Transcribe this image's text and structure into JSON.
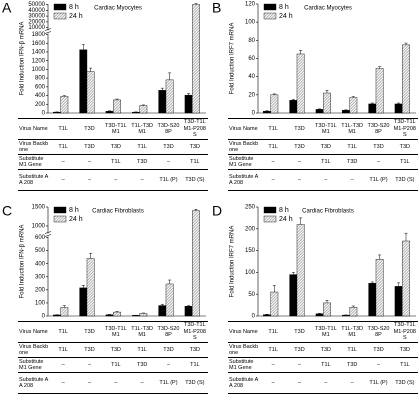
{
  "chart_data": [
    {
      "type": "bar",
      "panel": "A",
      "title": "Cardiac Myocytes",
      "y_label": "Fold Induction IFN-β mRNA",
      "categories": [
        "T1L",
        "T3D",
        "T3D-T1LM1",
        "T1L-T3DM1",
        "T3D-S208P",
        "T3D-T1LM1-P208S"
      ],
      "series": [
        {
          "name": "8 h",
          "color": "#000000",
          "values": [
            20,
            1450,
            40,
            20,
            520,
            410
          ],
          "errors": [
            5,
            120,
            10,
            5,
            50,
            40
          ]
        },
        {
          "name": "24 h",
          "color": "#b0b0b0",
          "pattern": "hatch",
          "values": [
            380,
            950,
            300,
            170,
            760,
            50000
          ],
          "errors": [
            20,
            80,
            20,
            15,
            160,
            1500
          ]
        }
      ],
      "ylim": [
        0,
        1800
      ],
      "yticks": [
        0,
        200,
        400,
        600,
        800,
        1000,
        1200,
        1400,
        1600,
        1800
      ],
      "y_break": {
        "ylim": [
          5000,
          51000
        ],
        "yticks": [
          10000,
          20000,
          30000,
          40000,
          50000
        ]
      },
      "table": {
        "headers": [
          "Virus Name",
          "Virus Backbone",
          "Substitute M1 Gene",
          "Substitute AA 208"
        ],
        "rows": [
          [
            "T1L",
            "T3D",
            "T3D",
            "T1L",
            "T3D",
            "T3D"
          ],
          [
            "–",
            "–",
            "T1L",
            "T3D",
            "–",
            "T1L"
          ],
          [
            "–",
            "–",
            "–",
            "–",
            "T1L (P)",
            "T3D (S)"
          ]
        ]
      }
    },
    {
      "type": "bar",
      "panel": "B",
      "title": "Cardiac Myocytes",
      "y_label": "Fold Induction IRF7 mRNA",
      "categories": [
        "T1L",
        "T3D",
        "T3D-T1LM1",
        "T1L-T3DM1",
        "T3D-S208P",
        "T3D-T1LM1-P208S"
      ],
      "series": [
        {
          "name": "8 h",
          "color": "#000000",
          "values": [
            2,
            14,
            4,
            3,
            10,
            10
          ],
          "errors": [
            0.5,
            1,
            0.5,
            0.5,
            1,
            1
          ]
        },
        {
          "name": "24 h",
          "color": "#b0b0b0",
          "pattern": "hatch",
          "values": [
            20,
            65,
            22,
            17,
            49,
            75
          ],
          "errors": [
            1,
            4,
            3,
            1,
            2,
            2
          ]
        }
      ],
      "ylim": [
        0,
        120
      ],
      "yticks": [
        0,
        20,
        40,
        60,
        80,
        100,
        120
      ],
      "table": {
        "headers": [
          "Virus Name",
          "Virus Backbone",
          "Substitute M1 Gene",
          "Substitute AA 208"
        ],
        "rows": [
          [
            "T1L",
            "T3D",
            "T3D",
            "T1L",
            "T3D",
            "T3D"
          ],
          [
            "–",
            "–",
            "T1L",
            "T3D",
            "–",
            "T1L"
          ],
          [
            "–",
            "–",
            "–",
            "–",
            "T1L (P)",
            "T3D (S)"
          ]
        ]
      }
    },
    {
      "type": "bar",
      "panel": "C",
      "title": "Cardiac Fibroblasts",
      "y_label": "Fold Induction IFN-β mRNA",
      "categories": [
        "T1L",
        "T3D",
        "T3D-T1LM1",
        "T1L-T3DM1",
        "T3D-S208P",
        "T3D-T1LM1-P208S"
      ],
      "series": [
        {
          "name": "8 h",
          "color": "#000000",
          "values": [
            8,
            215,
            10,
            5,
            80,
            75
          ],
          "errors": [
            2,
            20,
            2,
            1,
            10,
            5
          ]
        },
        {
          "name": "24 h",
          "color": "#b0b0b0",
          "pattern": "hatch",
          "values": [
            65,
            440,
            30,
            20,
            245,
            1400
          ],
          "errors": [
            15,
            40,
            5,
            3,
            30,
            40
          ]
        }
      ],
      "ylim": [
        0,
        600
      ],
      "yticks": [
        0,
        100,
        200,
        300,
        400,
        500,
        600
      ],
      "y_break": {
        "ylim": [
          800,
          1500
        ],
        "yticks": [
          1000,
          1500
        ]
      },
      "table": {
        "headers": [
          "Virus Name",
          "Virus Backbone",
          "Substitute M1 Gene",
          "Substitute AA 208"
        ],
        "rows": [
          [
            "T1L",
            "T3D",
            "T3D",
            "T1L",
            "T3D",
            "T3D"
          ],
          [
            "–",
            "–",
            "T1L",
            "T3D",
            "–",
            "T1L"
          ],
          [
            "–",
            "–",
            "–",
            "–",
            "T1L (P)",
            "T3D (S)"
          ]
        ]
      }
    },
    {
      "type": "bar",
      "panel": "D",
      "title": "Cardiac Fibroblasts",
      "y_label": "Fold Induction IRF7 mRNA",
      "categories": [
        "T1L",
        "T3D",
        "T3D-T1LM1",
        "T1L-T3DM1",
        "T3D-S208P",
        "T3D-T1LM1-P208S"
      ],
      "series": [
        {
          "name": "8 h",
          "color": "#000000",
          "values": [
            3,
            95,
            5,
            2,
            75,
            68
          ],
          "errors": [
            1,
            5,
            1,
            0.5,
            3,
            8
          ]
        },
        {
          "name": "24 h",
          "color": "#b0b0b0",
          "pattern": "hatch",
          "values": [
            55,
            210,
            30,
            20,
            130,
            172
          ],
          "errors": [
            15,
            15,
            6,
            3,
            10,
            18
          ]
        }
      ],
      "ylim": [
        0,
        250
      ],
      "yticks": [
        0,
        50,
        100,
        150,
        200,
        250
      ],
      "table": {
        "headers": [
          "Virus Name",
          "Virus Backbone",
          "Substitute M1 Gene",
          "Substitute AA 208"
        ],
        "rows": [
          [
            "T1L",
            "T3D",
            "T3D",
            "T1L",
            "T3D",
            "T3D"
          ],
          [
            "–",
            "–",
            "T1L",
            "T3D",
            "–",
            "T1L"
          ],
          [
            "–",
            "–",
            "–",
            "–",
            "T1L (P)",
            "T3D (S)"
          ]
        ]
      }
    }
  ]
}
